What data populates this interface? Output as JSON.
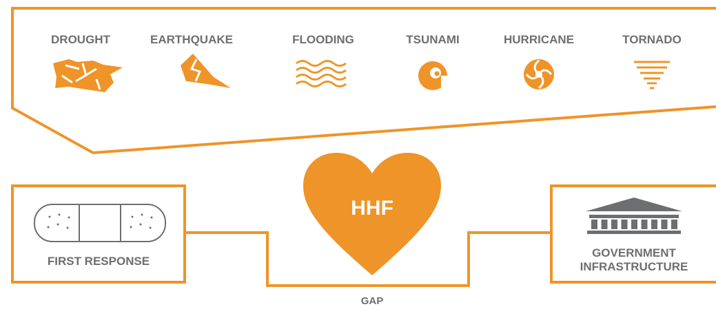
{
  "disasters": [
    "DROUGHT",
    "EARTHQUAKE",
    "FLOODING",
    "TSUNAMI",
    "HURRICANE",
    "TORNADO"
  ],
  "heart": {
    "label": "HHF"
  },
  "left_box": {
    "label": "FIRST RESPONSE"
  },
  "right_box": {
    "lines": [
      "GOVERNMENT",
      "INFRASTRUCTURE"
    ]
  },
  "gap": {
    "label": "GAP"
  }
}
